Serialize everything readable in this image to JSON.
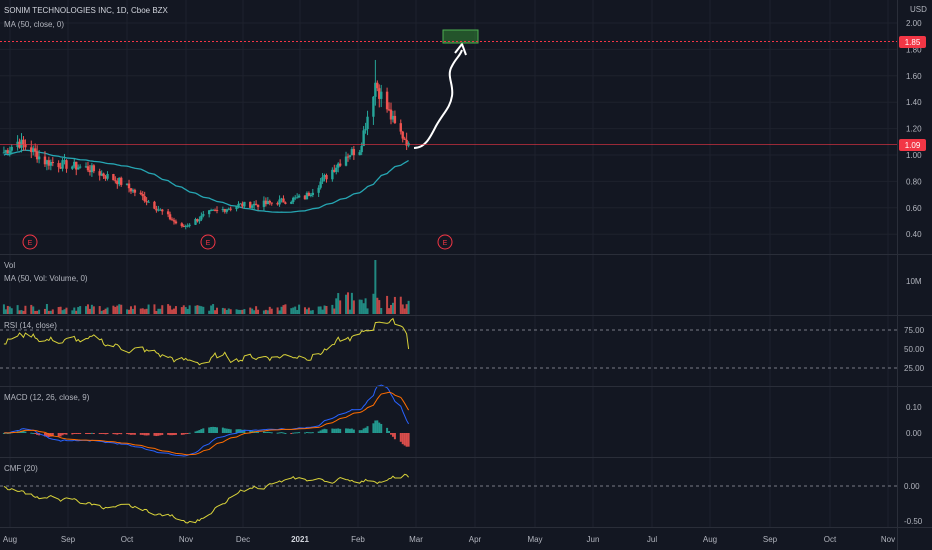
{
  "header": {
    "title": "SONIM TECHNOLOGIES INC, 1D, Cboe BZX",
    "ma_label": "MA (50, close, 0)"
  },
  "currency": "USD",
  "colors": {
    "bg": "#131722",
    "grid": "#1e222d",
    "text": "#b2b5be",
    "up": "#26a69a",
    "down": "#ef5350",
    "ma": "#26a6b3",
    "yellow": "#d8d23a",
    "macd": "#2962ff",
    "signal": "#ff6d00",
    "price_marker": "#f23645",
    "target_box": "#2e7d32"
  },
  "price_axis": {
    "ticks": [
      "2.00",
      "1.80",
      "1.60",
      "1.40",
      "1.20",
      "1.00",
      "0.80",
      "0.60",
      "0.40"
    ],
    "markers": [
      {
        "label": "1.85",
        "value": 1.85,
        "line": "dashed"
      },
      {
        "label": "1.09",
        "value": 1.09,
        "line": "solid"
      }
    ]
  },
  "earnings_markers": [
    {
      "label": "E",
      "date_index": 4
    },
    {
      "label": "E",
      "date_index": 71
    },
    {
      "label": "E",
      "date_index": 149
    }
  ],
  "x_axis": {
    "labels": [
      "Aug",
      "Sep",
      "Oct",
      "Nov",
      "Dec",
      "2021",
      "Feb",
      "Mar",
      "Apr",
      "May",
      "Jun",
      "Jul",
      "Aug",
      "Sep",
      "Oct",
      "Nov"
    ],
    "bold": [
      "2021"
    ]
  },
  "panes": {
    "volume": {
      "title": "Vol",
      "ma_label": "MA (50, Vol: Volume, 0)",
      "ticks": [
        "10M"
      ]
    },
    "rsi": {
      "title": "RSI (14, close)",
      "ticks": [
        "75.00",
        "50.00",
        "25.00"
      ]
    },
    "macd": {
      "title": "MACD (12, 26, close, 9)",
      "ticks": [
        "0.10",
        "0.00"
      ]
    },
    "cmf": {
      "title": "CMF (20)",
      "ticks": [
        "0.00",
        "-0.50"
      ]
    }
  },
  "chart_data": [
    {
      "type": "candlestick",
      "title": "SONIM TECHNOLOGIES INC, 1D, Cboe BZX",
      "ylabel": "USD",
      "ylim": [
        0.3,
        2.05
      ],
      "x_range": [
        "2020-08-01",
        "2021-11-05"
      ],
      "close_series_approx": [
        {
          "x": "2020-08-03",
          "y": 1.02
        },
        {
          "x": "2020-08-10",
          "y": 1.1
        },
        {
          "x": "2020-08-17",
          "y": 1.04
        },
        {
          "x": "2020-08-24",
          "y": 0.95
        },
        {
          "x": "2020-09-01",
          "y": 0.93
        },
        {
          "x": "2020-09-15",
          "y": 0.9
        },
        {
          "x": "2020-10-01",
          "y": 0.8
        },
        {
          "x": "2020-10-15",
          "y": 0.66
        },
        {
          "x": "2020-11-02",
          "y": 0.45
        },
        {
          "x": "2020-11-16",
          "y": 0.56
        },
        {
          "x": "2020-12-01",
          "y": 0.62
        },
        {
          "x": "2020-12-15",
          "y": 0.63
        },
        {
          "x": "2021-01-04",
          "y": 0.68
        },
        {
          "x": "2021-01-15",
          "y": 0.84
        },
        {
          "x": "2021-01-25",
          "y": 1.0
        },
        {
          "x": "2021-02-01",
          "y": 1.05
        },
        {
          "x": "2021-02-09",
          "y": 1.55
        },
        {
          "x": "2021-02-12",
          "y": 1.45
        },
        {
          "x": "2021-02-19",
          "y": 1.22
        },
        {
          "x": "2021-02-26",
          "y": 1.09
        }
      ],
      "peak_high": 1.72,
      "last_close": 1.09,
      "target": 1.85,
      "moving_average": {
        "name": "MA (50, close, 0)",
        "start": 1.0,
        "min": 0.62,
        "end": 0.93
      }
    },
    {
      "type": "bar",
      "title": "Vol",
      "ma_label": "MA (50, Vol: Volume, 0)",
      "y_tick": "10M",
      "spike_date": "2021-02-09"
    },
    {
      "type": "line",
      "title": "RSI (14, close)",
      "ylim": [
        10,
        90
      ],
      "levels": [
        75,
        50,
        25
      ],
      "last": 50
    },
    {
      "type": "line",
      "title": "MACD (12, 26, close, 9)",
      "ylim": [
        -0.04,
        0.14
      ],
      "ticks": [
        0.1,
        0.0
      ]
    },
    {
      "type": "line",
      "title": "CMF (20)",
      "ylim": [
        -0.65,
        0.15
      ],
      "ticks": [
        0.0,
        -0.5
      ]
    }
  ]
}
